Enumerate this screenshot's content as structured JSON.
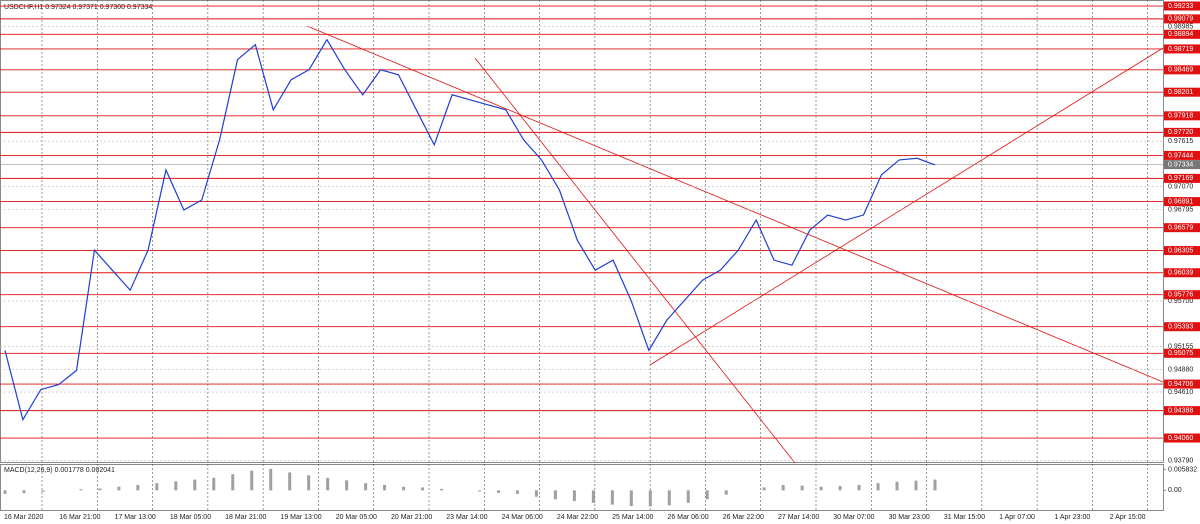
{
  "chart_data": {
    "type": "line",
    "title": "USDCHF,H1  0.97324 0.97371 0.97300 0.97334",
    "values": [
      0.9511,
      0.9428,
      0.9464,
      0.947,
      0.9487,
      0.9631,
      0.9607,
      0.9583,
      0.9631,
      0.9727,
      0.9679,
      0.9691,
      0.9763,
      0.9859,
      0.9877,
      0.9799,
      0.9835,
      0.9847,
      0.9883,
      0.9847,
      0.9817,
      0.9847,
      0.9841,
      0.9799,
      0.9757,
      0.9817,
      0.9811,
      0.9805,
      0.9799,
      0.9763,
      0.9739,
      0.9703,
      0.9643,
      0.9607,
      0.9619,
      0.9571,
      0.9511,
      0.9547,
      0.9571,
      0.9595,
      0.9607,
      0.9631,
      0.9667,
      0.9619,
      0.9613,
      0.9655,
      0.9673,
      0.9667,
      0.9673,
      0.9721,
      0.9739,
      0.9741,
      0.9733
    ],
    "color": "#1f3fd1",
    "ylim": [
      0.93761,
      0.99305
    ],
    "grid": true,
    "current": 0.97334,
    "levels": [
      0.99233,
      0.99079,
      0.98894,
      0.98719,
      0.98469,
      0.98201,
      0.97918,
      {
        "value": 0.9772,
        "label": "0.97720"
      },
      0.97444,
      0.97169,
      0.96891,
      0.96579,
      0.96305,
      0.96039,
      0.95776,
      0.95393,
      0.95075,
      0.94706,
      0.94388,
      {
        "value": 0.9406,
        "label": "0.94060"
      }
    ],
    "level_color": "#e01010",
    "yticks": [
      0.98985,
      0.97615,
      {
        "value": 0.9707,
        "label": "0.97070"
      },
      0.96795,
      {
        "value": 0.957,
        "label": "0.95700"
      },
      0.95155,
      {
        "value": 0.9488,
        "label": "0.94880"
      },
      {
        "value": 0.9461,
        "label": "0.94610"
      },
      {
        "value": 0.9379,
        "label": "0.93790"
      }
    ],
    "xticks": [
      "16 Mar 2020",
      "16 Mar 21:00",
      "17 Mar 13:00",
      "18 Mar 05:00",
      "18 Mar 21:00",
      "19 Mar 13:00",
      "20 Mar 05:00",
      "20 Mar 21:00",
      "23 Mar 14:00",
      "24 Mar 06:00",
      "24 Mar 22:00",
      "25 Mar 14:00",
      "26 Mar 06:00",
      "26 Mar 22:00",
      "27 Mar 14:00",
      "30 Mar 07:00",
      "30 Mar 23:00",
      "31 Mar 15:00",
      "1 Apr 07:00",
      "1 Apr 23:00",
      "2 Apr 15:00"
    ],
    "macd": {
      "title": "MACD(12,26,9) 0.001778 0.002041",
      "values": [
        -0.001,
        -0.0008,
        -0.0004,
        0,
        0.0003,
        0.0005,
        0.001,
        0.0015,
        0.002,
        0.0025,
        0.003,
        0.0035,
        0.0045,
        0.0055,
        0.006,
        0.005,
        0.0042,
        0.0035,
        0.0028,
        0.002,
        0.0015,
        0.001,
        0.0008,
        0.0004,
        0,
        -0.0003,
        -0.0007,
        -0.001,
        -0.0018,
        -0.0025,
        -0.003,
        -0.0035,
        -0.004,
        -0.0044,
        -0.0045,
        -0.0042,
        -0.0035,
        -0.0025,
        -0.0012,
        0,
        0.0008,
        0.0015,
        0.0013,
        0.001,
        0.0012,
        0.0015,
        0.002,
        0.0024,
        0.0027,
        0.003
      ],
      "color": "#a0a0a0",
      "ylim": [
        -0.0055,
        0.0068
      ],
      "yticks": [
        0.005832,
        {
          "value": 0,
          "label": "0.00"
        }
      ]
    }
  }
}
